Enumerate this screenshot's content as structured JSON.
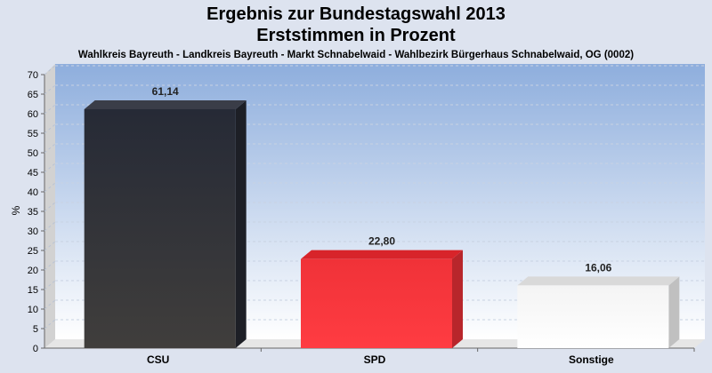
{
  "chart_data": {
    "type": "bar",
    "title": "Ergebnis zur Bundestagswahl 2013",
    "title_line2": "Erststimmen in Prozent",
    "subtitle": "Wahlkreis Bayreuth - Landkreis Bayreuth - Markt Schnabelwaid - Wahlbezirk Bürgerhaus Schnabelwaid, OG (0002)",
    "ylabel": "%",
    "ylim": [
      0,
      70
    ],
    "yticks": [
      "0",
      "5",
      "10",
      "15",
      "20",
      "25",
      "30",
      "35",
      "40",
      "45",
      "50",
      "55",
      "60",
      "65",
      "70"
    ],
    "categories": [
      "CSU",
      "SPD",
      "Sonstige"
    ],
    "values": [
      61.14,
      22.8,
      16.06
    ],
    "value_labels": [
      "61,14",
      "22,80",
      "16,06"
    ],
    "colors": [
      "#2b2d36",
      "#f03238",
      "#ffffff"
    ],
    "grid": true,
    "legend": "none"
  }
}
